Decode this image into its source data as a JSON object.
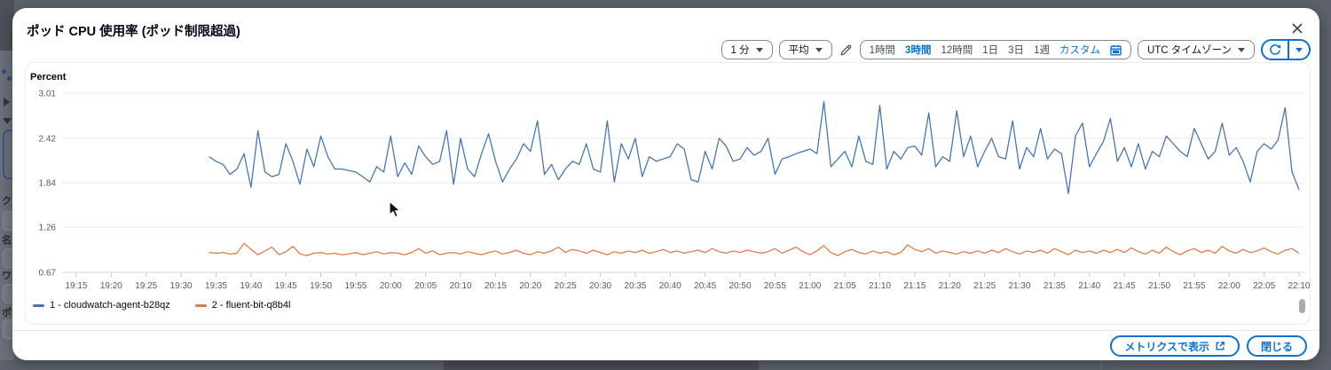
{
  "modal": {
    "title": "ポッド CPU 使用率 (ポッド制限超過)"
  },
  "toolbar": {
    "period_select": "1 分",
    "statistic_select": "平均",
    "ranges": [
      "1時間",
      "3時間",
      "12時間",
      "1日",
      "3日",
      "1週"
    ],
    "selected_range": "3時間",
    "custom_label": "カスタム",
    "timezone_select": "UTC タイムゾーン"
  },
  "footer": {
    "view_in_metrics_label": "メトリクスで表示",
    "close_label": "閉じる"
  },
  "background": {
    "sidebar_labels": [
      "ク",
      "名",
      "ワ",
      "ポ"
    ]
  },
  "colors": {
    "accent": "#0972d3",
    "series_blue": "#3e73b4",
    "series_orange": "#e07941",
    "grid": "#e9eaec",
    "axis_text": "#545b64"
  },
  "chart_data": {
    "type": "line",
    "title": "ポッド CPU 使用率 (ポッド制限超過)",
    "ylabel": "Percent",
    "xlabel": "",
    "ylim": [
      0.67,
      3.01
    ],
    "yticks": [
      3.01,
      2.42,
      1.84,
      1.26,
      0.67
    ],
    "grid": true,
    "legend_position": "bottom",
    "period": "1 分",
    "statistic": "平均",
    "xticks": [
      "19:15",
      "19:20",
      "19:25",
      "19:30",
      "19:35",
      "19:40",
      "19:45",
      "19:50",
      "19:55",
      "20:00",
      "20:05",
      "20:10",
      "20:15",
      "20:20",
      "20:25",
      "20:30",
      "20:35",
      "20:40",
      "20:45",
      "20:50",
      "20:55",
      "21:00",
      "21:05",
      "21:10",
      "21:15",
      "21:20",
      "21:25",
      "21:30",
      "21:35",
      "21:40",
      "21:45",
      "21:50",
      "21:55",
      "22:00",
      "22:05",
      "22:10"
    ],
    "x_start": "19:34",
    "x_end": "22:10",
    "series": [
      {
        "name": "1 - cloudwatch-agent-b28qz",
        "color": "#3e73b4",
        "values": [
          2.18,
          2.12,
          2.08,
          1.95,
          2.02,
          2.22,
          1.78,
          2.52,
          1.98,
          1.92,
          1.95,
          2.35,
          2.12,
          1.82,
          2.28,
          2.05,
          2.45,
          2.18,
          2.02,
          2.02,
          2.0,
          1.98,
          1.92,
          1.85,
          2.05,
          1.98,
          2.45,
          1.92,
          2.1,
          1.95,
          2.32,
          2.18,
          2.08,
          2.12,
          2.52,
          1.82,
          2.42,
          2.02,
          1.92,
          2.22,
          2.48,
          2.12,
          1.85,
          2.02,
          2.15,
          2.35,
          2.25,
          2.65,
          1.95,
          2.08,
          1.88,
          2.02,
          2.12,
          2.08,
          2.35,
          2.02,
          1.98,
          2.65,
          1.85,
          2.35,
          2.15,
          2.42,
          1.92,
          2.18,
          2.12,
          2.15,
          2.18,
          2.35,
          2.28,
          1.88,
          1.85,
          2.25,
          2.02,
          2.42,
          2.32,
          2.12,
          2.15,
          2.3,
          2.2,
          2.25,
          2.42,
          1.95,
          2.15,
          2.18,
          2.22,
          2.25,
          2.28,
          2.22,
          2.9,
          2.05,
          2.15,
          2.25,
          2.05,
          2.45,
          2.12,
          2.08,
          2.85,
          2.02,
          2.25,
          2.15,
          2.3,
          2.32,
          2.2,
          2.75,
          2.05,
          2.18,
          2.12,
          2.78,
          2.18,
          2.45,
          2.05,
          2.25,
          2.42,
          2.18,
          2.15,
          2.65,
          2.02,
          2.3,
          2.18,
          2.55,
          2.15,
          2.28,
          2.22,
          1.7,
          2.45,
          2.62,
          2.05,
          2.22,
          2.38,
          2.68,
          2.12,
          2.3,
          2.05,
          2.35,
          2.02,
          2.25,
          2.18,
          2.45,
          2.35,
          2.25,
          2.18,
          2.55,
          2.35,
          2.15,
          2.25,
          2.62,
          2.2,
          2.3,
          2.12,
          1.85,
          2.25,
          2.35,
          2.28,
          2.4,
          2.82,
          1.98,
          1.75
        ]
      },
      {
        "name": "2 - fluent-bit-q8b4l",
        "color": "#e07941",
        "values": [
          0.93,
          0.92,
          0.93,
          0.91,
          0.92,
          1.05,
          0.97,
          0.9,
          0.95,
          1.0,
          0.9,
          0.94,
          1.01,
          0.91,
          0.89,
          0.92,
          0.93,
          0.91,
          0.92,
          0.9,
          0.91,
          0.93,
          0.9,
          0.92,
          0.94,
          0.91,
          0.93,
          0.92,
          0.9,
          0.93,
          0.98,
          0.92,
          0.95,
          0.9,
          0.92,
          0.93,
          0.91,
          0.94,
          0.92,
          0.9,
          0.93,
          0.95,
          0.91,
          0.93,
          0.96,
          0.92,
          0.9,
          0.94,
          0.92,
          0.95,
          1.0,
          0.93,
          0.97,
          0.95,
          0.92,
          0.96,
          0.93,
          0.9,
          0.94,
          0.92,
          0.95,
          0.93,
          0.96,
          0.92,
          0.94,
          0.97,
          0.93,
          0.95,
          0.92,
          0.94,
          0.96,
          0.93,
          0.98,
          0.94,
          0.92,
          0.95,
          0.93,
          0.96,
          0.94,
          0.92,
          0.94,
          0.98,
          0.92,
          0.96,
          1.0,
          0.94,
          0.9,
          0.95,
          1.02,
          0.93,
          0.89,
          0.94,
          0.97,
          0.93,
          0.91,
          0.95,
          0.92,
          0.94,
          0.9,
          0.93,
          1.03,
          0.97,
          0.94,
          0.98,
          0.92,
          0.95,
          0.93,
          0.91,
          0.94,
          0.92,
          0.95,
          0.92,
          0.96,
          0.93,
          0.98,
          0.94,
          0.91,
          0.95,
          0.93,
          0.96,
          0.92,
          0.98,
          0.94,
          0.9,
          0.96,
          0.93,
          0.95,
          0.92,
          0.96,
          0.93,
          0.97,
          0.93,
          0.99,
          0.94,
          0.91,
          0.96,
          0.92,
          1.0,
          0.94,
          0.9,
          0.95,
          0.98,
          0.93,
          0.96,
          0.92,
          1.01,
          0.95,
          0.92,
          0.97,
          0.93,
          0.95,
          0.99,
          0.94,
          0.91,
          0.96,
          0.98,
          0.92
        ]
      }
    ]
  }
}
